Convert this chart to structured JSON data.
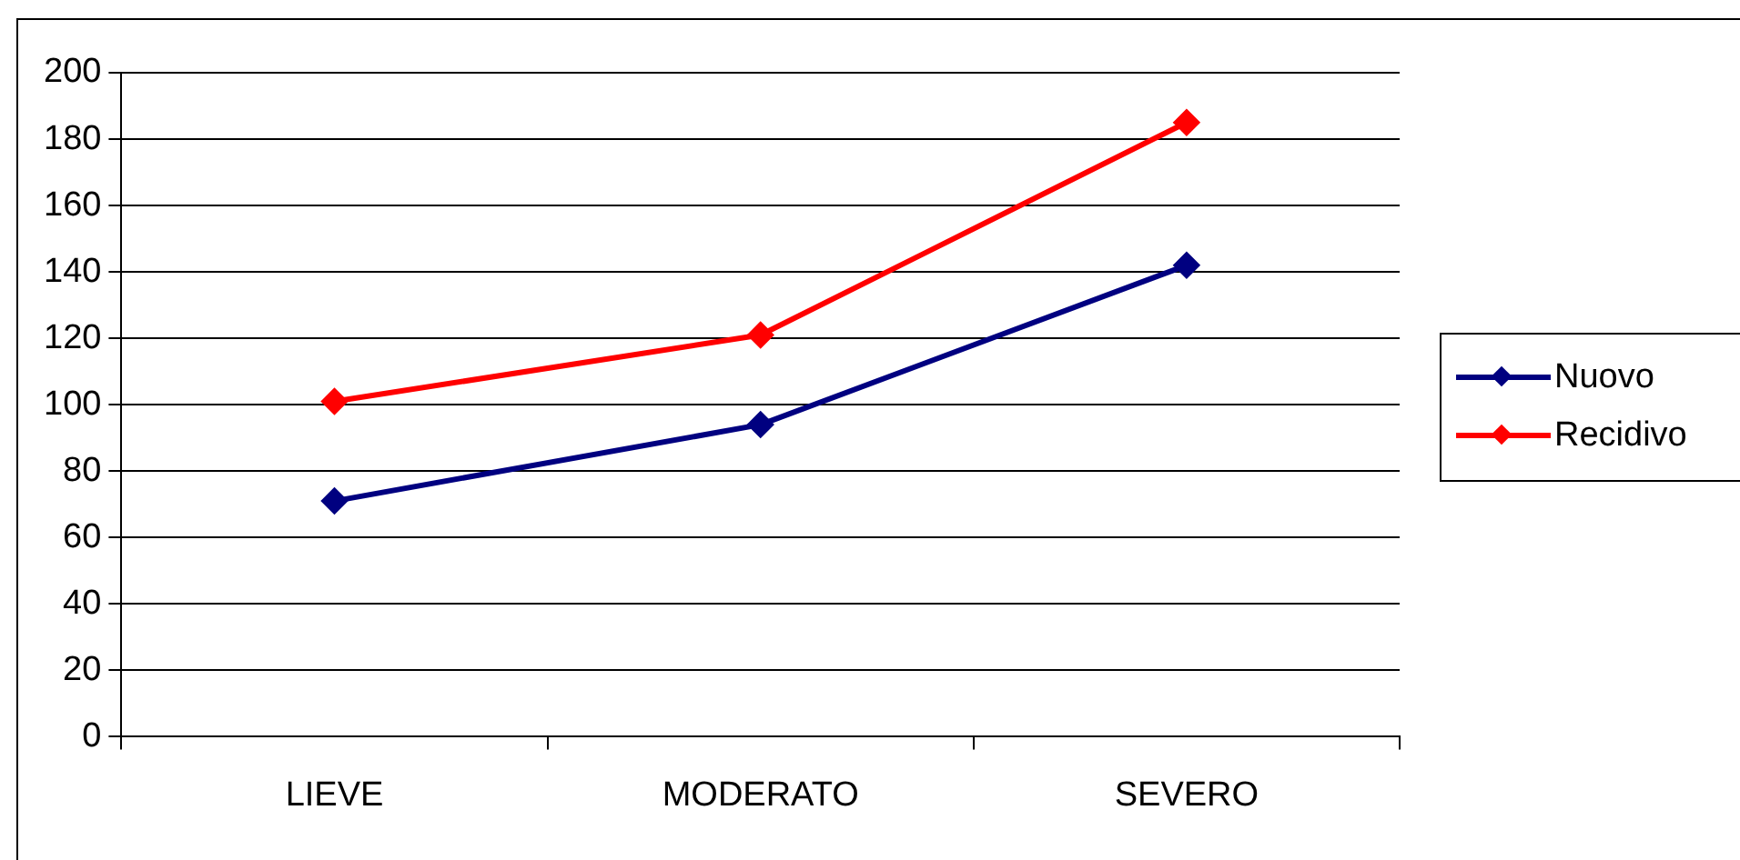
{
  "chart_data": {
    "type": "line",
    "categories": [
      "LIEVE",
      "MODERATO",
      "SEVERO"
    ],
    "series": [
      {
        "name": "Nuovo",
        "color": "#000080",
        "values": [
          71,
          94,
          142
        ]
      },
      {
        "name": "Recidivo",
        "color": "#ff0000",
        "values": [
          101,
          121,
          185
        ]
      }
    ],
    "ylim": [
      0,
      200
    ],
    "yticks": [
      0,
      20,
      40,
      60,
      80,
      100,
      120,
      140,
      160,
      180,
      200
    ],
    "grid": "y",
    "legend": "right",
    "marker": "diamond",
    "line_style": "solid"
  }
}
